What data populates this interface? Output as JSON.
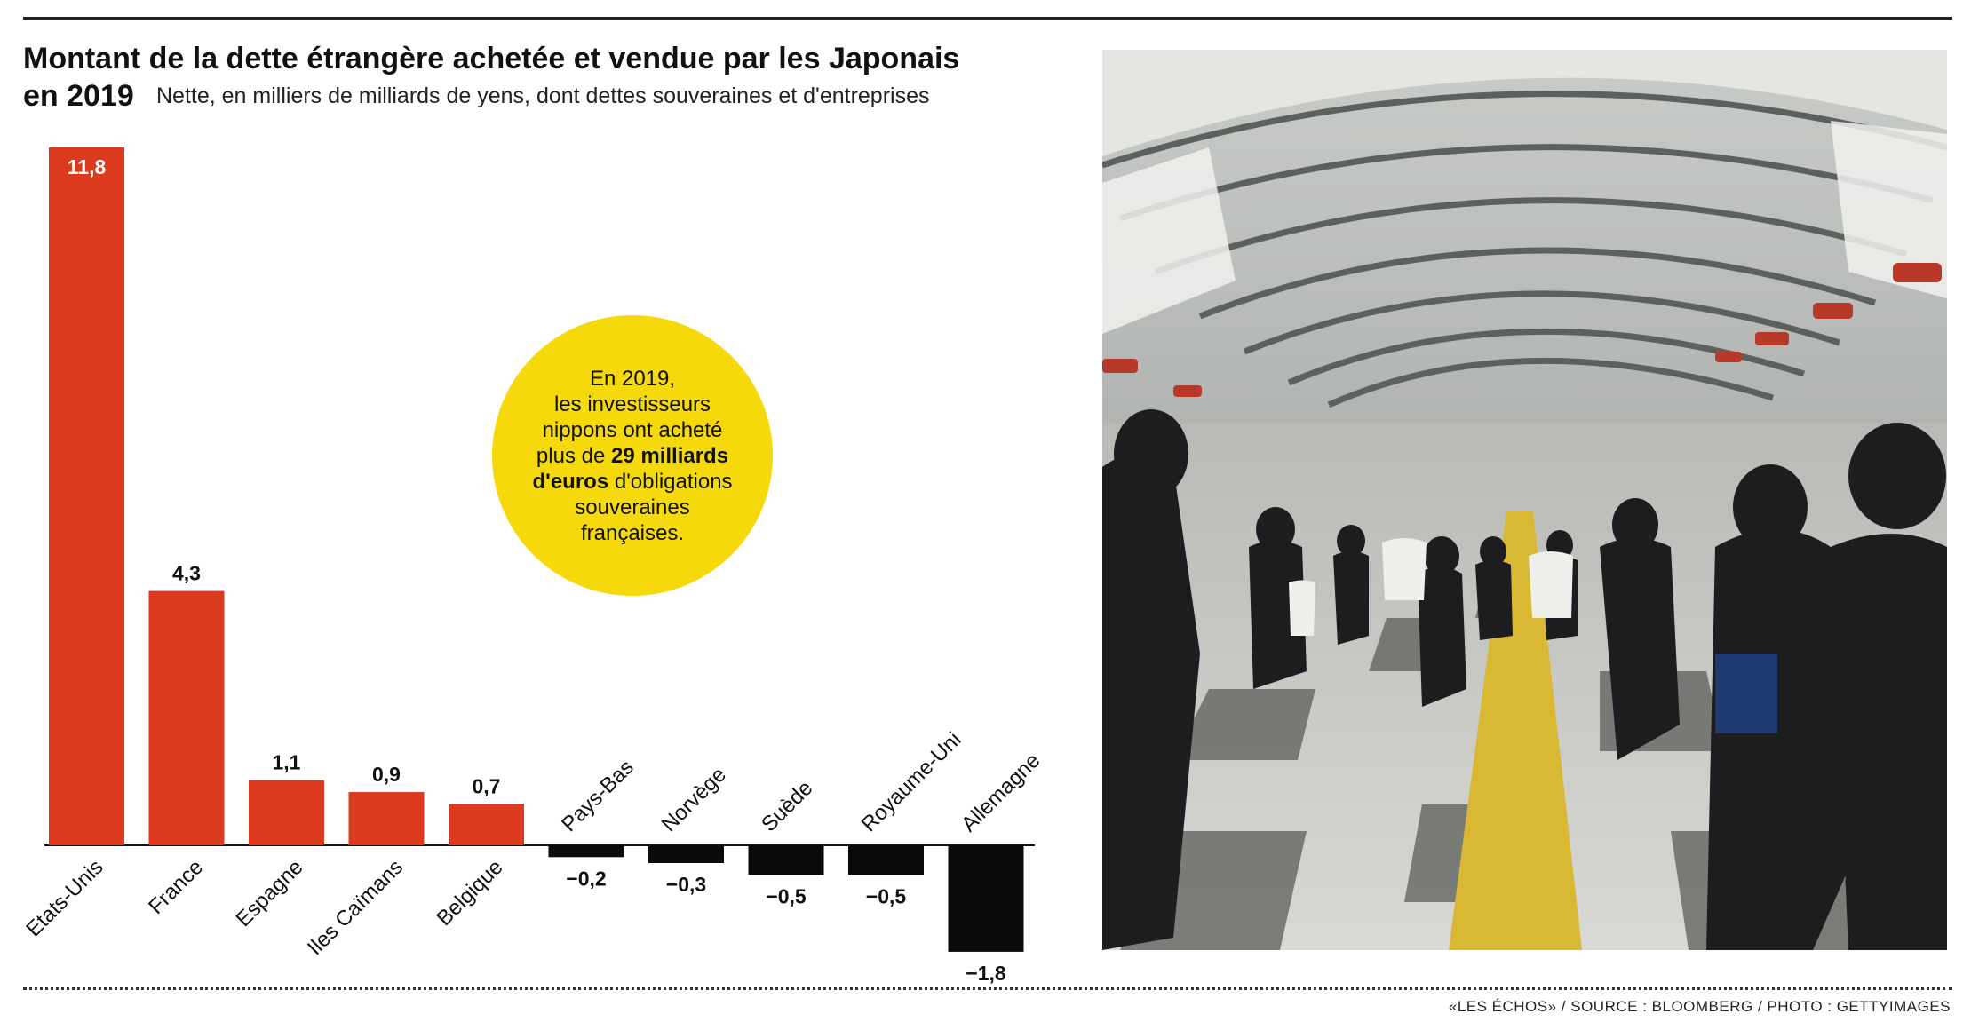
{
  "header": {
    "title_line1": "Montant de la dette étrangère achetée et vendue par les Japonais",
    "title_line2": "en 2019",
    "subtitle": "Nette, en milliers de milliards de yens, dont dettes souveraines et d'entreprises"
  },
  "callout": {
    "text_1": "En 2019,",
    "text_2": "les investisseurs",
    "text_3": "nippons ont acheté",
    "text_4_pre": "plus de ",
    "bold_1": "29 milliards",
    "bold_2": "d'euros",
    "text_5_post": " d'obligations",
    "text_6": "souveraines",
    "text_7": "françaises."
  },
  "footer": {
    "credit": "«LES ÉCHOS» / SOURCE : BLOOMBERG / PHOTO : GETTYIMAGES"
  },
  "colors": {
    "positive": "#dc3a1e",
    "negative": "#0a0a0a",
    "callout": "#f5d90a"
  },
  "chart_data": {
    "type": "bar",
    "categories": [
      "Etats-Unis",
      "France",
      "Espagne",
      "Iles Caïmans",
      "Belgique",
      "Pays-Bas",
      "Norvège",
      "Suède",
      "Royaume-Uni",
      "Allemagne"
    ],
    "values": [
      11.8,
      4.3,
      1.1,
      0.9,
      0.7,
      -0.2,
      -0.3,
      -0.5,
      -0.5,
      -1.8
    ],
    "value_labels": [
      "11,8",
      "4,3",
      "1,1",
      "0,9",
      "0,7",
      "−0,2",
      "−0,3",
      "−0,5",
      "−0,5",
      "−1,8"
    ],
    "title": "Montant de la dette étrangère achetée et vendue par les Japonais en 2019",
    "subtitle": "Nette, en milliers de milliards de yens, dont dettes souveraines et d'entreprises",
    "ylim": [
      -1.8,
      11.8
    ],
    "grid": false,
    "legend": "none"
  }
}
